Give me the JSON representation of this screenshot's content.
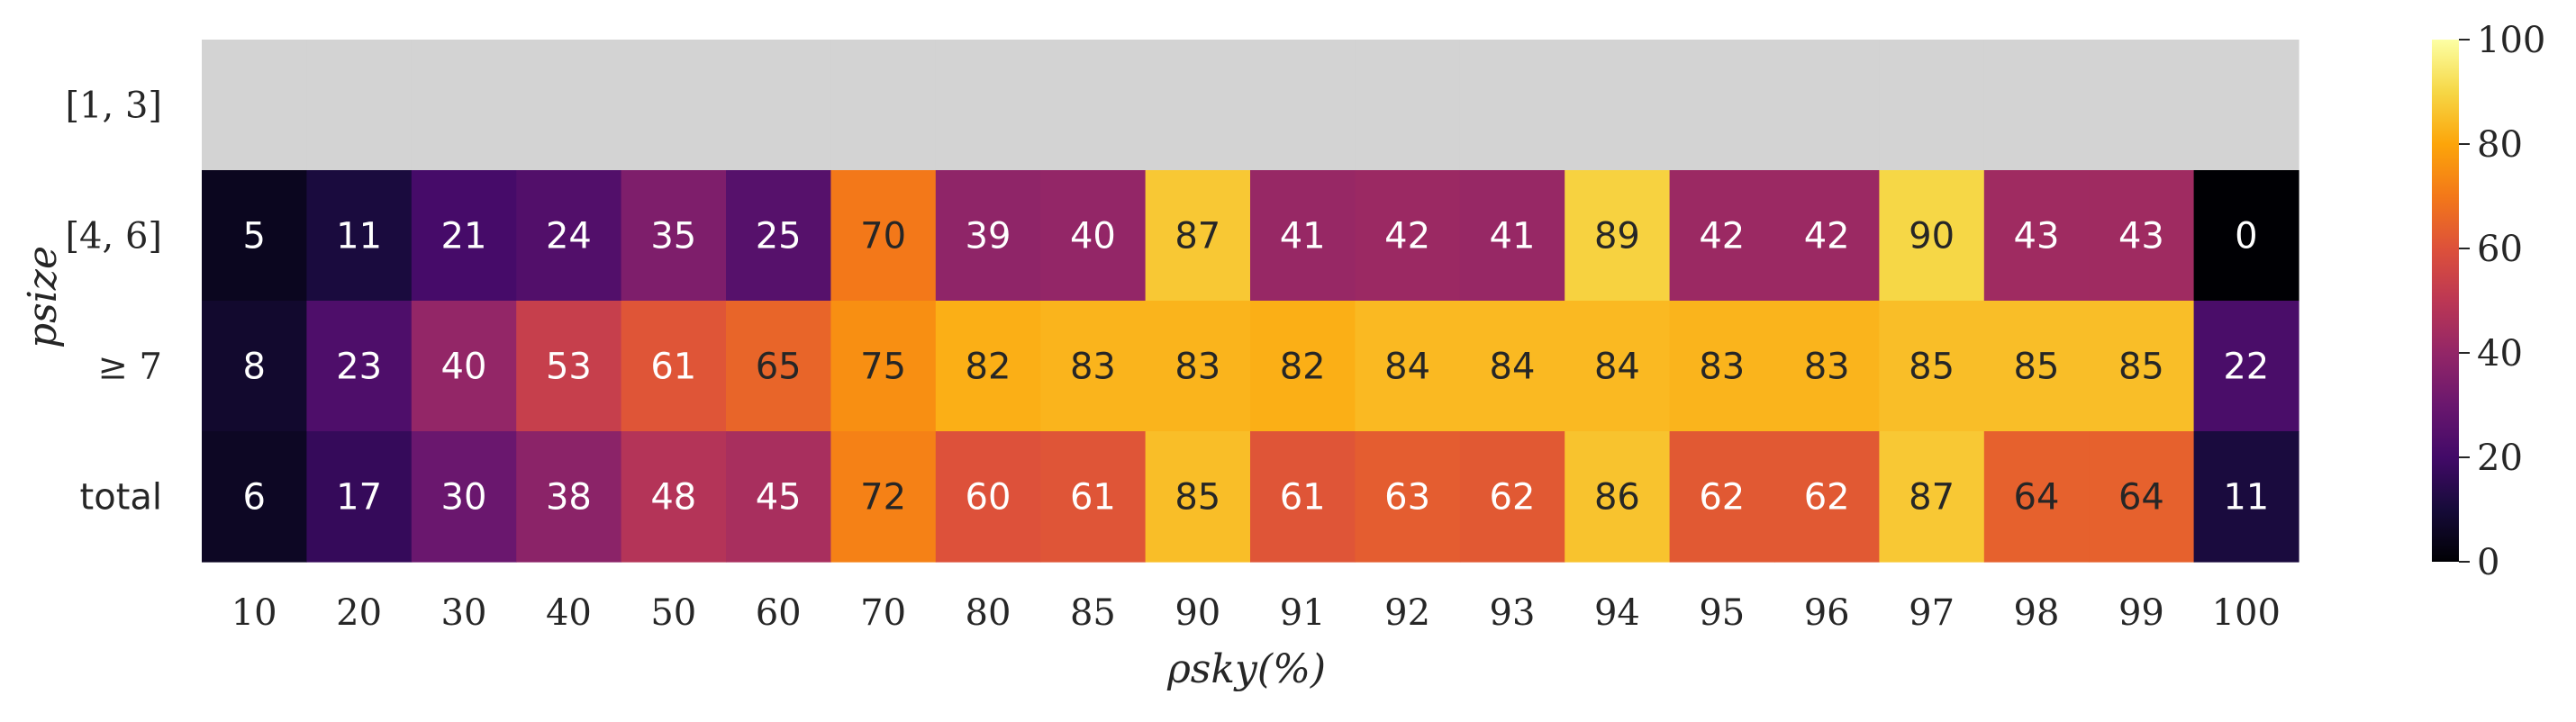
{
  "chart_data": {
    "type": "heatmap",
    "xlabel": "ρsky(%)",
    "ylabel": "psize",
    "x_categories": [
      "10",
      "20",
      "30",
      "40",
      "50",
      "60",
      "70",
      "80",
      "85",
      "90",
      "91",
      "92",
      "93",
      "94",
      "95",
      "96",
      "97",
      "98",
      "99",
      "100"
    ],
    "y_categories": [
      "[1, 3]",
      "[4, 6]",
      "≥ 7",
      "total"
    ],
    "values": [
      [
        null,
        null,
        null,
        null,
        null,
        null,
        null,
        null,
        null,
        null,
        null,
        null,
        null,
        null,
        null,
        null,
        null,
        null,
        null,
        null
      ],
      [
        5,
        11,
        21,
        24,
        35,
        25,
        70,
        39,
        40,
        87,
        41,
        42,
        41,
        89,
        42,
        42,
        90,
        43,
        43,
        0
      ],
      [
        8,
        23,
        40,
        53,
        61,
        65,
        75,
        82,
        83,
        83,
        82,
        84,
        84,
        84,
        83,
        83,
        85,
        85,
        85,
        22
      ],
      [
        6,
        17,
        30,
        38,
        48,
        45,
        72,
        60,
        61,
        85,
        61,
        63,
        62,
        86,
        62,
        62,
        87,
        64,
        64,
        11
      ]
    ],
    "missing_color": "#d3d3d3",
    "colormap": "inferno",
    "colorbar": {
      "vmin": 0,
      "vmax": 100,
      "ticks": [
        "0",
        "20",
        "40",
        "60",
        "80",
        "100"
      ]
    }
  }
}
